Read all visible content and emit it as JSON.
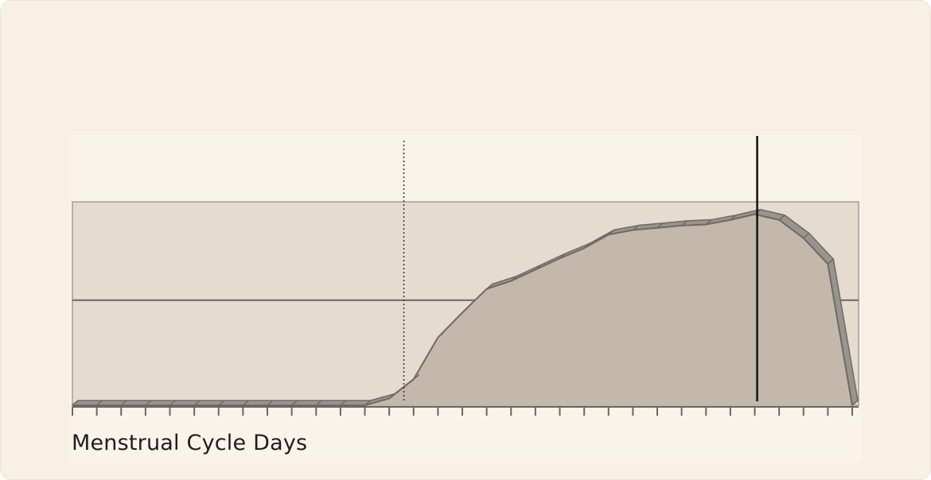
{
  "chart_data": {
    "type": "area",
    "xlabel": "Menstrual Cycle Days",
    "title": "",
    "ylabel": "",
    "x": [
      1,
      2,
      3,
      4,
      5,
      6,
      7,
      8,
      9,
      10,
      11,
      12,
      13,
      14,
      15,
      16,
      17,
      18,
      19,
      20,
      21,
      22,
      23,
      24,
      25,
      26,
      27,
      28,
      29,
      30,
      31,
      32,
      33
    ],
    "values": [
      0,
      0,
      0,
      0,
      0,
      0,
      0,
      0,
      0,
      0,
      0,
      0,
      0,
      0.6,
      2.3,
      6.0,
      8.2,
      10.3,
      11.0,
      12.0,
      13.0,
      13.9,
      15.1,
      15.5,
      15.7,
      15.9,
      16.0,
      16.4,
      16.9,
      16.4,
      14.8,
      12.5,
      0
    ],
    "xlim": [
      1,
      33
    ],
    "ylim": [
      0,
      18
    ],
    "band": [
      0,
      18
    ],
    "reference_line": 9.3,
    "dotted_marker_day": 14.6,
    "solid_marker_day": 29.1,
    "grid": false,
    "colors": {
      "area_fill": "#c3b8aa",
      "area_edge": "#6e6a66",
      "ribbon_fill": "#9a948e",
      "band_fill": "#e5dccf",
      "band_stroke": "#a39d95",
      "axis": "#6a6663",
      "reference_line": "#6a6663",
      "marker": "#111111"
    }
  }
}
